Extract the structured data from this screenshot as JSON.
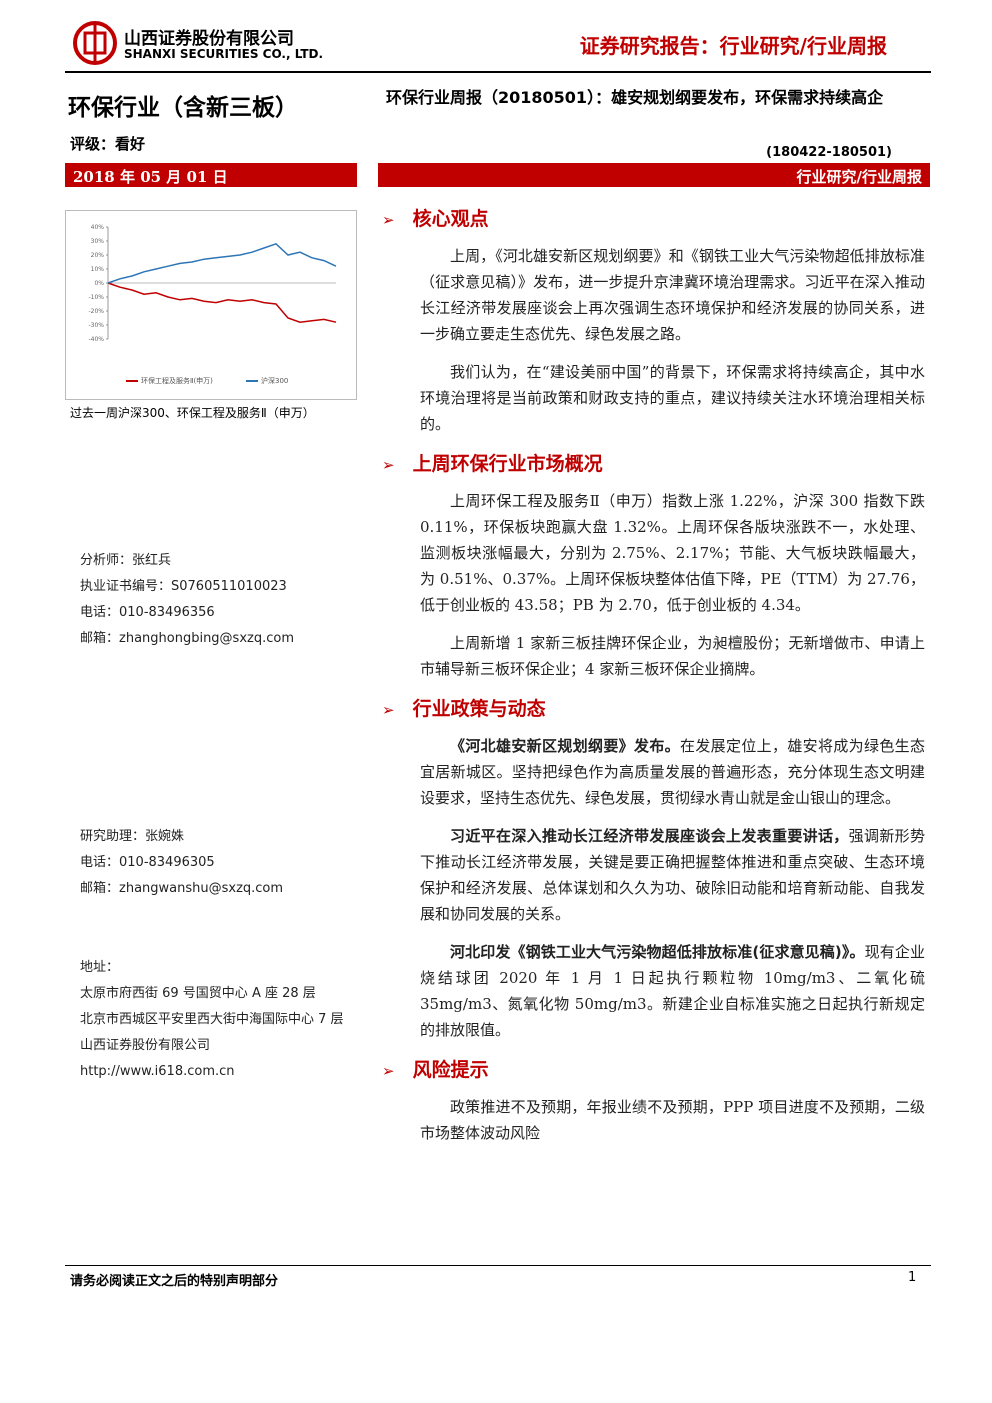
{
  "header": {
    "company_cn": "山西证券股份有限公司",
    "company_en": "SHANXI SECURITIES CO., LTD.",
    "report_type": "证券研究报告：行业研究/行业周报"
  },
  "title_block": {
    "industry": "环保行业（含新三板）",
    "rating": "评级：看好",
    "date": "2018 年 05 月 01 日",
    "report_title": "环保行业周报（20180501）：雄安规划纲要发布，环保需求持续高企",
    "period": "(180422-180501)",
    "category": "行业研究/行业周报"
  },
  "chart_data": {
    "type": "line",
    "ylim": [
      -40,
      40
    ],
    "yticks": [
      {
        "value": -40,
        "label": "-40%"
      },
      {
        "value": -30,
        "label": "-30%"
      },
      {
        "value": -20,
        "label": "-20%"
      },
      {
        "value": -10,
        "label": "-10%"
      },
      {
        "value": 0,
        "label": "0%"
      },
      {
        "value": 10,
        "label": "10%"
      },
      {
        "value": 20,
        "label": "20%"
      },
      {
        "value": 30,
        "label": "30%"
      },
      {
        "value": 40,
        "label": "40%"
      }
    ],
    "series": [
      {
        "name": "环保工程及服务Ⅱ(申万)",
        "color": "#c00000",
        "values": [
          0,
          -3,
          -5,
          -8,
          -7,
          -10,
          -12,
          -11,
          -13,
          -14,
          -12,
          -13,
          -12,
          -14,
          -15,
          -25,
          -28,
          -27,
          -26,
          -28
        ]
      },
      {
        "name": "沪深300",
        "color": "#2e75b6",
        "values": [
          0,
          3,
          5,
          8,
          10,
          12,
          14,
          15,
          17,
          18,
          19,
          20,
          22,
          25,
          28,
          20,
          22,
          18,
          16,
          12
        ]
      }
    ],
    "caption": "过去一周沪深300、环保工程及服务Ⅱ（申万）"
  },
  "sidebar": {
    "analyst": [
      "分析师：张红兵",
      "执业证书编号：S0760511010023",
      "电话：010-83496356",
      "邮箱：zhanghongbing@sxzq.com"
    ],
    "assistant": [
      "研究助理：张婉姝",
      "电话：010-83496305",
      "邮箱：zhangwanshu@sxzq.com"
    ],
    "address": [
      "地址：",
      "太原市府西街 69 号国贸中心 A 座 28 层",
      "北京市西城区平安里西大街中海国际中心 7 层",
      "山西证券股份有限公司",
      "http://www.i618.com.cn"
    ]
  },
  "sections": [
    {
      "heading": "核心观点",
      "paragraphs": [
        {
          "text": "上周，《河北雄安新区规划纲要》和《钢铁工业大气污染物超低排放标准（征求意见稿）》发布，进一步提升京津冀环境治理需求。习近平在深入推动长江经济带发展座谈会上再次强调生态环境保护和经济发展的协同关系，进一步确立要走生态优先、绿色发展之路。"
        },
        {
          "text": "我们认为，在“建设美丽中国”的背景下，环保需求将持续高企，其中水环境治理将是当前政策和财政支持的重点，建议持续关注水环境治理相关标的。"
        }
      ]
    },
    {
      "heading": "上周环保行业市场概况",
      "paragraphs": [
        {
          "text": "上周环保工程及服务Ⅱ（申万）指数上涨 1.22%，沪深 300 指数下跌 0.11%，环保板块跑赢大盘 1.32%。上周环保各版块涨跌不一，水处理、监测板块涨幅最大，分别为 2.75%、2.17%；节能、大气板块跌幅最大，为 0.51%、0.37%。上周环保板块整体估值下降，PE（TTM）为 27.76，低于创业板的 43.58；PB 为 2.70，低于创业板的 4.34。"
        },
        {
          "text": "上周新增 1 家新三板挂牌环保企业，为昶檀股份；无新增做市、申请上市辅导新三板环保企业；4 家新三板环保企业摘牌。"
        }
      ]
    },
    {
      "heading": "行业政策与动态",
      "paragraphs": [
        {
          "bold": "《河北雄安新区规划纲要》发布。",
          "text": "在发展定位上，雄安将成为绿色生态宜居新城区。坚持把绿色作为高质量发展的普遍形态，充分体现生态文明建设要求，坚持生态优先、绿色发展，贯彻绿水青山就是金山银山的理念。"
        },
        {
          "bold": "习近平在深入推动长江经济带发展座谈会上发表重要讲话，",
          "text": "强调新形势下推动长江经济带发展，关键是要正确把握整体推进和重点突破、生态环境保护和经济发展、总体谋划和久久为功、破除旧动能和培育新动能、自我发展和协同发展的关系。"
        },
        {
          "bold": "河北印发《钢铁工业大气污染物超低排放标准(征求意见稿)》。",
          "text": "现有企业烧结球团 2020 年 1 月 1 日起执行颗粒物 10mg/m3、二氧化硫 35mg/m3、氮氧化物 50mg/m3。新建企业自标准实施之日起执行新规定的排放限值。"
        }
      ]
    },
    {
      "heading": "风险提示",
      "paragraphs": [
        {
          "text": "政策推进不及预期，年报业绩不及预期，PPP 项目进度不及预期，二级市场整体波动风险"
        }
      ]
    }
  ],
  "footer": {
    "disclaimer": "请务必阅读正文之后的特别声明部分",
    "page": "1"
  }
}
